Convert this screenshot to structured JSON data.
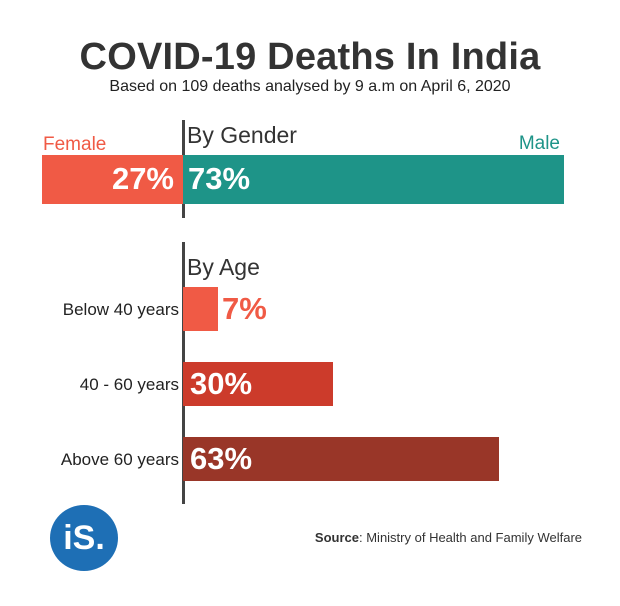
{
  "title": "COVID-19 Deaths In India",
  "subtitle": "Based on 109 deaths analysed by 9 a.m on April 6, 2020",
  "logo_text": "iS.",
  "source": {
    "label": "Source",
    "text": ": Ministry of Health and Family Welfare"
  },
  "colors": {
    "female": "#f05a45",
    "male": "#1e9488",
    "age_below_40": "#f05a45",
    "age_40_60": "#cc3b2b",
    "age_above_60": "#993628",
    "logo": "#1e6fb5"
  },
  "chart_data": [
    {
      "type": "bar",
      "title": "By Gender",
      "orientation": "horizontal-diverging",
      "categories": [
        "Female",
        "Male"
      ],
      "values": [
        27,
        73
      ],
      "value_labels": [
        "27%",
        "73%"
      ],
      "unit": "%"
    },
    {
      "type": "bar",
      "title": "By Age",
      "orientation": "horizontal",
      "categories": [
        "Below 40 years",
        "40 - 60 years",
        "Above 60 years"
      ],
      "values": [
        7,
        30,
        63
      ],
      "value_labels": [
        "7%",
        "30%",
        "63%"
      ],
      "unit": "%"
    }
  ]
}
